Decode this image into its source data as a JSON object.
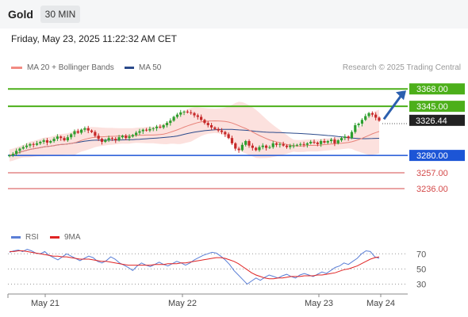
{
  "header": {
    "title": "Gold",
    "timeframe": "30 MIN"
  },
  "timestamp": "Friday, May 23, 2025 11:22:32 AM CET",
  "credit": "Research © 2025 Trading Central",
  "legend": {
    "ma20_bb": {
      "label": "MA 20 + Bollinger Bands",
      "color": "#f28b82"
    },
    "ma50": {
      "label": "MA 50",
      "color": "#2b4a8b"
    }
  },
  "rsi_legend": {
    "rsi": {
      "label": "RSI",
      "color": "#5b7fd6"
    },
    "ma9": {
      "label": "9MA",
      "color": "#e02424"
    }
  },
  "colors": {
    "resistance": "#4caf1a",
    "support_main": "#1c55d6",
    "support_minor": "#d44a4a",
    "up": "#2e9e2e",
    "down": "#c62828",
    "arrow": "#2b5fae"
  },
  "chart_data": [
    {
      "type": "candlestick",
      "ylim": [
        3192,
        3385
      ],
      "x_tick_labels": [
        "May 21",
        "May 22",
        "May 23",
        "May 24"
      ],
      "last_price": 3326.44,
      "levels": [
        {
          "value": 3368.0,
          "label": "3368.00",
          "kind": "resistance"
        },
        {
          "value": 3345.0,
          "label": "3345.00",
          "kind": "resistance"
        },
        {
          "value": 3280.0,
          "label": "3280.00",
          "kind": "support_main"
        },
        {
          "value": 3257.0,
          "label": "3257.00",
          "kind": "support_minor"
        },
        {
          "value": 3236.0,
          "label": "3236.00",
          "kind": "support_minor"
        }
      ],
      "close_series": [
        3280,
        3282,
        3286,
        3289,
        3291,
        3293,
        3295,
        3294,
        3296,
        3298,
        3300,
        3297,
        3299,
        3302,
        3305,
        3303,
        3300,
        3304,
        3308,
        3312,
        3310,
        3314,
        3316,
        3313,
        3311,
        3306,
        3302,
        3298,
        3300,
        3303,
        3302,
        3300,
        3304,
        3306,
        3303,
        3305,
        3307,
        3310,
        3312,
        3314,
        3313,
        3315,
        3316,
        3318,
        3317,
        3320,
        3323,
        3326,
        3331,
        3334,
        3337,
        3338,
        3337,
        3336,
        3333,
        3331,
        3327,
        3323,
        3320,
        3317,
        3315,
        3313,
        3311,
        3308,
        3303,
        3296,
        3289,
        3287,
        3294,
        3299,
        3293,
        3290,
        3287,
        3291,
        3293,
        3290,
        3291,
        3296,
        3294,
        3295,
        3293,
        3291,
        3293,
        3293,
        3294,
        3295,
        3294,
        3296,
        3298,
        3297,
        3295,
        3299,
        3297,
        3299,
        3301,
        3296,
        3300,
        3303,
        3305,
        3303,
        3311,
        3320,
        3322,
        3327,
        3332,
        3336,
        3334,
        3330,
        3326
      ]
    },
    {
      "type": "line",
      "title": "RSI",
      "ylim": [
        20,
        85
      ],
      "y_ticks": [
        30,
        50,
        70
      ],
      "y_tick_labels": [
        "30",
        "50",
        "70"
      ],
      "x_tick_labels": [
        "May 21",
        "May 22",
        "May 23",
        "May 24"
      ],
      "series": [
        {
          "name": "RSI",
          "values": [
            72,
            74,
            75,
            73,
            76,
            74,
            71,
            70,
            73,
            68,
            65,
            62,
            66,
            70,
            67,
            64,
            61,
            64,
            67,
            65,
            60,
            58,
            61,
            66,
            63,
            58,
            55,
            52,
            48,
            54,
            58,
            55,
            53,
            56,
            59,
            56,
            54,
            57,
            60,
            58,
            55,
            58,
            62,
            65,
            68,
            70,
            72,
            71,
            67,
            62,
            56,
            48,
            42,
            36,
            30,
            34,
            38,
            35,
            39,
            42,
            40,
            38,
            41,
            43,
            40,
            38,
            42,
            44,
            42,
            40,
            43,
            46,
            44,
            48,
            52,
            54,
            58,
            56,
            60,
            64,
            70,
            74,
            73,
            66,
            64
          ]
        },
        {
          "name": "9MA",
          "values": [
            73,
            73,
            74,
            74,
            73,
            72,
            71,
            70,
            69,
            68,
            67,
            67,
            66,
            66,
            65,
            64,
            63,
            63,
            63,
            62,
            61,
            60,
            60,
            59,
            58,
            57,
            56,
            55,
            55,
            55,
            55,
            55,
            55,
            56,
            56,
            56,
            57,
            57,
            57,
            58,
            58,
            59,
            60,
            61,
            62,
            63,
            64,
            65,
            65,
            64,
            62,
            60,
            57,
            53,
            49,
            45,
            42,
            40,
            38,
            37,
            37,
            38,
            38,
            39,
            40,
            40,
            40,
            41,
            41,
            41,
            42,
            42,
            43,
            44,
            45,
            47,
            49,
            50,
            52,
            54,
            57,
            60,
            63,
            65,
            66
          ]
        }
      ]
    }
  ]
}
